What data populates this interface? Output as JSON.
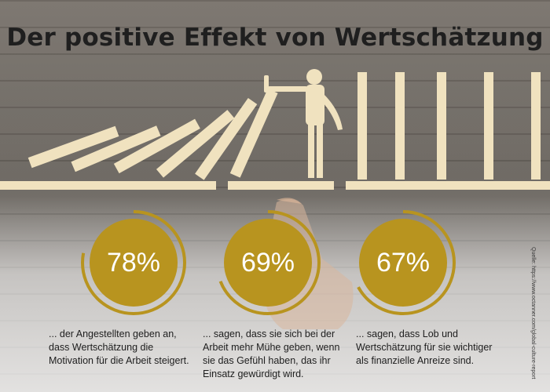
{
  "title": "Der positive Effekt von Wertschätzung",
  "stats": [
    {
      "percent": "78%",
      "value": 0.78,
      "description": "... der Angestellten geben an, dass Wertschätzung die Motivation für die Arbeit steigert."
    },
    {
      "percent": "69%",
      "value": 0.69,
      "description": "... sagen, dass sie sich bei der Arbeit mehr Mühe geben, wenn sie das Gefühl haben, das ihr Einsatz gewürdigt wird."
    },
    {
      "percent": "67%",
      "value": 0.67,
      "description": "... sagen, dass Lob und Wertschätzung für sie wichtiger als finanzielle Anreize sind."
    }
  ],
  "source": "Quelle: https://www.octanner.com/global-culture-report",
  "colors": {
    "gold": "#b8941f",
    "domino": "#f0e2bf",
    "title": "#1f1f1f"
  }
}
